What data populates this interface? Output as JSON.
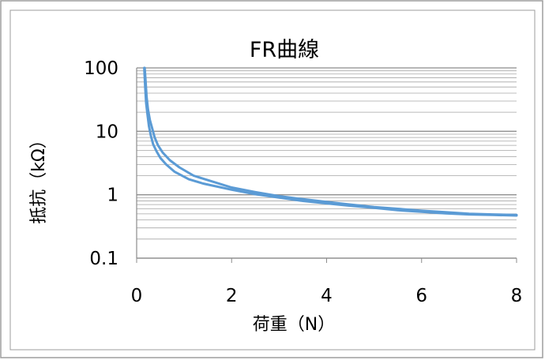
{
  "chart_data": {
    "type": "line",
    "title": "FR曲線",
    "xlabel": "荷重（N）",
    "ylabel": "抵抗（kΩ）",
    "xlim": [
      0,
      8
    ],
    "ylim": [
      0.1,
      100
    ],
    "y_scale": "log",
    "x_ticks": [
      "0",
      "2",
      "4",
      "6",
      "8"
    ],
    "y_ticks": [
      "0.1",
      "1",
      "10",
      "100"
    ],
    "grid": "horizontal major and minor",
    "legend": "none",
    "series_color": "#5b9bd5",
    "series": [
      {
        "x": [
          0.17,
          0.19,
          0.21,
          0.24,
          0.28,
          0.33,
          0.38,
          0.45,
          0.55,
          0.7,
          0.9,
          1.2,
          1.5,
          2.0,
          2.5,
          3.0,
          3.5,
          4.0,
          4.5,
          5.0,
          5.5,
          6.0,
          6.5,
          7.0,
          7.5,
          8.0
        ],
        "y": [
          100,
          60,
          35,
          22,
          15,
          11,
          8.0,
          6.0,
          4.6,
          3.5,
          2.7,
          2.0,
          1.7,
          1.3,
          1.1,
          0.95,
          0.85,
          0.77,
          0.7,
          0.64,
          0.6,
          0.56,
          0.53,
          0.5,
          0.49,
          0.48
        ]
      },
      {
        "x": [
          0.16,
          0.18,
          0.2,
          0.23,
          0.26,
          0.3,
          0.35,
          0.42,
          0.5,
          0.62,
          0.8,
          1.1,
          1.4,
          2.0,
          2.5,
          3.0,
          3.5,
          4.0,
          4.5,
          5.0,
          5.5,
          6.0,
          6.5,
          7.0,
          7.5,
          8.0
        ],
        "y": [
          100,
          50,
          28,
          18,
          12,
          8.5,
          6.2,
          4.8,
          3.8,
          3.0,
          2.3,
          1.75,
          1.5,
          1.2,
          1.02,
          0.9,
          0.8,
          0.73,
          0.67,
          0.62,
          0.57,
          0.54,
          0.51,
          0.49,
          0.48,
          0.47
        ]
      }
    ]
  }
}
